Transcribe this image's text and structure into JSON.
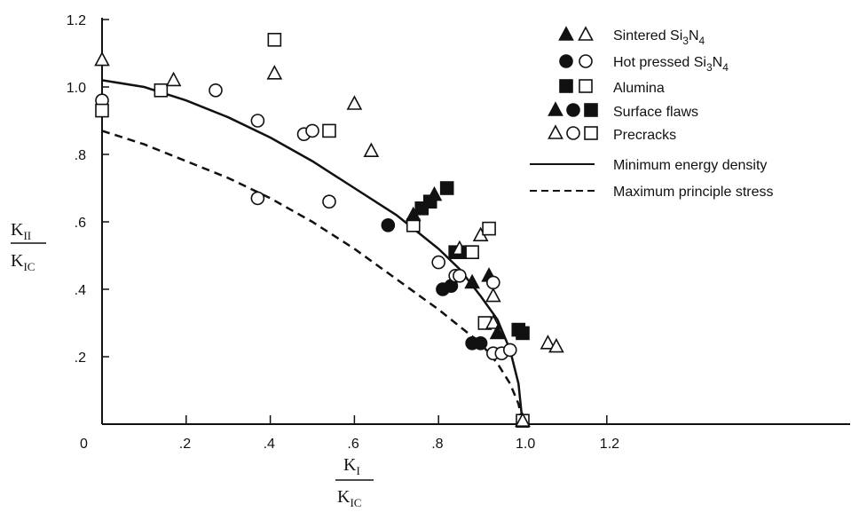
{
  "chart_data": {
    "type": "scatter",
    "xlabel": {
      "num": "K",
      "num_sub": "I",
      "den": "K",
      "den_sub": "IC"
    },
    "ylabel": {
      "num": "K",
      "num_sub": "II",
      "den": "K",
      "den_sub": "IC"
    },
    "xlim": [
      0,
      1.85
    ],
    "ylim": [
      0,
      1.2
    ],
    "x_ticks": [
      {
        "v": 0,
        "label": "0"
      },
      {
        "v": 0.2,
        "label": ".2"
      },
      {
        "v": 0.4,
        "label": ".4"
      },
      {
        "v": 0.6,
        "label": ".6"
      },
      {
        "v": 0.8,
        "label": ".8"
      },
      {
        "v": 1.0,
        "label": "1.0"
      },
      {
        "v": 1.2,
        "label": "1.2"
      }
    ],
    "y_ticks": [
      {
        "v": 0.2,
        "label": ".2"
      },
      {
        "v": 0.4,
        "label": ".4"
      },
      {
        "v": 0.6,
        "label": ".6"
      },
      {
        "v": 0.8,
        "label": ".8"
      },
      {
        "v": 1.0,
        "label": "1.0"
      },
      {
        "v": 1.2,
        "label": "1.2"
      }
    ],
    "legend": {
      "placement": "top-right",
      "entries": [
        {
          "label": "Sintered Si",
          "sub": "3",
          "label2": "N",
          "sub2": "4",
          "markers": [
            "triangle-filled",
            "triangle-open"
          ]
        },
        {
          "label": "Hot pressed Si",
          "sub": "3",
          "label2": "N",
          "sub2": "4",
          "markers": [
            "circle-filled",
            "circle-open"
          ]
        },
        {
          "label": "Alumina",
          "markers": [
            "square-filled",
            "square-open"
          ]
        },
        {
          "label": "Surface flaws",
          "markers": [
            "triangle-filled",
            "circle-filled",
            "square-filled"
          ]
        },
        {
          "label": "Precracks",
          "markers": [
            "triangle-open",
            "circle-open",
            "square-open"
          ]
        },
        {
          "label": "Minimum energy density",
          "line": "solid"
        },
        {
          "label": "Maximum principle stress",
          "line": "dashed"
        }
      ]
    },
    "series": [
      {
        "name": "Minimum energy density",
        "style": "solid",
        "x": [
          0,
          0.1,
          0.2,
          0.3,
          0.4,
          0.5,
          0.6,
          0.7,
          0.75,
          0.8,
          0.85,
          0.9,
          0.94,
          0.97,
          0.99,
          1.0
        ],
        "y": [
          1.02,
          1.0,
          0.96,
          0.91,
          0.85,
          0.78,
          0.7,
          0.62,
          0.57,
          0.52,
          0.46,
          0.38,
          0.31,
          0.22,
          0.12,
          0.0
        ]
      },
      {
        "name": "Maximum principle stress",
        "style": "dashed",
        "x": [
          0,
          0.1,
          0.2,
          0.3,
          0.4,
          0.5,
          0.6,
          0.7,
          0.8,
          0.85,
          0.9,
          0.94,
          0.97,
          0.99,
          1.0
        ],
        "y": [
          0.87,
          0.83,
          0.78,
          0.73,
          0.67,
          0.6,
          0.52,
          0.43,
          0.34,
          0.29,
          0.24,
          0.18,
          0.12,
          0.06,
          0.0
        ]
      }
    ],
    "points": [
      {
        "m": "triangle",
        "fill": false,
        "x": 0.0,
        "y": 1.08
      },
      {
        "m": "circle",
        "fill": false,
        "x": 0.0,
        "y": 0.96
      },
      {
        "m": "square",
        "fill": false,
        "x": 0.0,
        "y": 0.93
      },
      {
        "m": "square",
        "fill": false,
        "x": 0.14,
        "y": 0.99
      },
      {
        "m": "triangle",
        "fill": false,
        "x": 0.17,
        "y": 1.02
      },
      {
        "m": "circle",
        "fill": false,
        "x": 0.27,
        "y": 0.99
      },
      {
        "m": "circle",
        "fill": false,
        "x": 0.37,
        "y": 0.9
      },
      {
        "m": "circle",
        "fill": false,
        "x": 0.37,
        "y": 0.67
      },
      {
        "m": "square",
        "fill": false,
        "x": 0.41,
        "y": 1.14
      },
      {
        "m": "triangle",
        "fill": false,
        "x": 0.41,
        "y": 1.04
      },
      {
        "m": "circle",
        "fill": false,
        "x": 0.48,
        "y": 0.86
      },
      {
        "m": "circle",
        "fill": false,
        "x": 0.5,
        "y": 0.87
      },
      {
        "m": "square",
        "fill": false,
        "x": 0.54,
        "y": 0.87
      },
      {
        "m": "circle",
        "fill": false,
        "x": 0.54,
        "y": 0.66
      },
      {
        "m": "triangle",
        "fill": false,
        "x": 0.6,
        "y": 0.95
      },
      {
        "m": "triangle",
        "fill": false,
        "x": 0.64,
        "y": 0.81
      },
      {
        "m": "circle",
        "fill": true,
        "x": 0.68,
        "y": 0.59
      },
      {
        "m": "square",
        "fill": false,
        "x": 0.74,
        "y": 0.59
      },
      {
        "m": "triangle",
        "fill": true,
        "x": 0.74,
        "y": 0.62
      },
      {
        "m": "square",
        "fill": true,
        "x": 0.76,
        "y": 0.64
      },
      {
        "m": "square",
        "fill": true,
        "x": 0.78,
        "y": 0.66
      },
      {
        "m": "triangle",
        "fill": true,
        "x": 0.79,
        "y": 0.68
      },
      {
        "m": "square",
        "fill": true,
        "x": 0.82,
        "y": 0.7
      },
      {
        "m": "circle",
        "fill": false,
        "x": 0.8,
        "y": 0.48
      },
      {
        "m": "circle",
        "fill": true,
        "x": 0.81,
        "y": 0.4
      },
      {
        "m": "circle",
        "fill": true,
        "x": 0.83,
        "y": 0.41
      },
      {
        "m": "circle",
        "fill": false,
        "x": 0.84,
        "y": 0.44
      },
      {
        "m": "circle",
        "fill": false,
        "x": 0.85,
        "y": 0.44
      },
      {
        "m": "square",
        "fill": true,
        "x": 0.84,
        "y": 0.51
      },
      {
        "m": "triangle",
        "fill": false,
        "x": 0.85,
        "y": 0.52
      },
      {
        "m": "square",
        "fill": true,
        "x": 0.87,
        "y": 0.51
      },
      {
        "m": "triangle",
        "fill": true,
        "x": 0.88,
        "y": 0.42
      },
      {
        "m": "square",
        "fill": false,
        "x": 0.88,
        "y": 0.51
      },
      {
        "m": "triangle",
        "fill": false,
        "x": 0.9,
        "y": 0.56
      },
      {
        "m": "square",
        "fill": false,
        "x": 0.92,
        "y": 0.58
      },
      {
        "m": "triangle",
        "fill": true,
        "x": 0.92,
        "y": 0.44
      },
      {
        "m": "circle",
        "fill": false,
        "x": 0.93,
        "y": 0.42
      },
      {
        "m": "triangle",
        "fill": false,
        "x": 0.93,
        "y": 0.38
      },
      {
        "m": "circle",
        "fill": true,
        "x": 0.88,
        "y": 0.24
      },
      {
        "m": "circle",
        "fill": true,
        "x": 0.9,
        "y": 0.24
      },
      {
        "m": "square",
        "fill": false,
        "x": 0.91,
        "y": 0.3
      },
      {
        "m": "triangle",
        "fill": false,
        "x": 0.93,
        "y": 0.3
      },
      {
        "m": "triangle",
        "fill": true,
        "x": 0.94,
        "y": 0.27
      },
      {
        "m": "circle",
        "fill": false,
        "x": 0.93,
        "y": 0.21
      },
      {
        "m": "circle",
        "fill": false,
        "x": 0.95,
        "y": 0.21
      },
      {
        "m": "circle",
        "fill": false,
        "x": 0.97,
        "y": 0.22
      },
      {
        "m": "square",
        "fill": true,
        "x": 0.99,
        "y": 0.28
      },
      {
        "m": "square",
        "fill": true,
        "x": 1.0,
        "y": 0.27
      },
      {
        "m": "triangle",
        "fill": false,
        "x": 1.06,
        "y": 0.24
      },
      {
        "m": "triangle",
        "fill": false,
        "x": 1.08,
        "y": 0.23
      },
      {
        "m": "square",
        "fill": false,
        "x": 1.0,
        "y": 0.01
      },
      {
        "m": "triangle",
        "fill": false,
        "x": 1.0,
        "y": 0.01
      }
    ]
  }
}
